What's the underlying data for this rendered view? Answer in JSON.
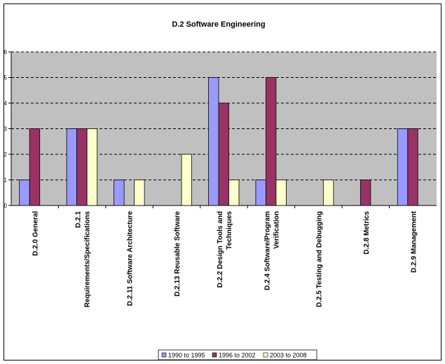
{
  "chart_data": {
    "type": "bar",
    "title": "D.2 Software Engineering",
    "xlabel": "",
    "ylabel": "",
    "ylim": [
      0,
      6
    ],
    "yticks": [
      "0",
      "1",
      "2",
      "3",
      "4",
      "5",
      "6"
    ],
    "grid": "horizontal dashed",
    "legend_position": "bottom",
    "categories": [
      [
        "D.2.0 General"
      ],
      [
        "D.2.1",
        "Requirements/Specifications"
      ],
      [
        "D.2.11 Software Architecture"
      ],
      [
        "D.2.13 Reusable Software"
      ],
      [
        "D.2.2 Design Tools and",
        "Techniques"
      ],
      [
        "D.2.4 Software/Program",
        "Verification"
      ],
      [
        "D.2.5 Testing and Debugging"
      ],
      [
        "D.2.8 Metrics"
      ],
      [
        "D.2.9 Management"
      ]
    ],
    "series": [
      {
        "name": "1990 to 1995",
        "color": "#9999ff",
        "values": [
          1,
          3,
          1,
          0,
          5,
          1,
          0,
          0,
          3
        ]
      },
      {
        "name": "1996 to 2002",
        "color": "#993366",
        "values": [
          3,
          3,
          0,
          0,
          4,
          5,
          0,
          1,
          3
        ]
      },
      {
        "name": "2003 to 2008",
        "color": "#ffffcc",
        "values": [
          0,
          3,
          1,
          2,
          1,
          1,
          1,
          0,
          0
        ]
      }
    ]
  },
  "colors": {
    "plot_background": "#c0c0c0",
    "bar_outline": "#000000"
  }
}
